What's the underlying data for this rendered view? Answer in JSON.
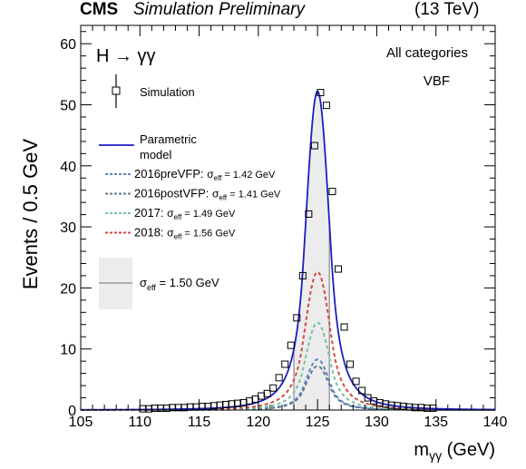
{
  "header": {
    "experiment": "CMS",
    "status": "Simulation Preliminary",
    "energy": "(13 TeV)"
  },
  "chart_data": {
    "type": "line",
    "title": "",
    "xlabel_main": "m",
    "xlabel_sub": "γγ",
    "xlabel_unit": "(GeV)",
    "ylabel": "Events / 0.5 GeV",
    "xlim": [
      105,
      140
    ],
    "ylim": [
      0,
      63
    ],
    "x_ticks": [
      105,
      110,
      115,
      120,
      125,
      130,
      135,
      140
    ],
    "y_ticks": [
      0,
      10,
      20,
      30,
      40,
      50,
      60
    ],
    "process_label": "H → γγ",
    "category_label": "All categories",
    "tag_label": "VBF",
    "sigma_eff_band": [
      123.0,
      126.0
    ],
    "legend": {
      "simulation": "Simulation",
      "parametric": "Parametric",
      "model": "model",
      "sigma_prefix": "σ",
      "sigma_sub": "eff",
      "band_value": " = 1.50 GeV"
    },
    "series": [
      {
        "name": "Simulation",
        "kind": "points",
        "x": [
          110.25,
          110.75,
          111.25,
          111.75,
          112.25,
          112.75,
          113.25,
          113.75,
          114.25,
          114.75,
          115.25,
          115.75,
          116.25,
          116.75,
          117.25,
          117.75,
          118.25,
          118.75,
          119.25,
          119.75,
          120.25,
          120.75,
          121.25,
          121.75,
          122.25,
          122.75,
          123.25,
          123.75,
          124.25,
          124.75,
          125.25,
          125.75,
          126.25,
          126.75,
          127.25,
          127.75,
          128.25,
          128.75,
          129.25,
          129.75,
          130.25,
          130.75,
          131.25,
          131.75,
          132.25,
          132.75,
          133.25,
          133.75,
          134.25,
          134.75
        ],
        "y": [
          0.2,
          0.2,
          0.3,
          0.3,
          0.3,
          0.4,
          0.4,
          0.4,
          0.5,
          0.5,
          0.6,
          0.6,
          0.7,
          0.8,
          0.9,
          1.0,
          1.1,
          1.2,
          1.5,
          1.8,
          2.3,
          2.7,
          3.6,
          5.3,
          7.5,
          10.6,
          15.1,
          22.0,
          32.1,
          43.3,
          52.0,
          49.9,
          35.8,
          23.1,
          13.6,
          7.5,
          4.7,
          3.2,
          2.0,
          1.5,
          1.2,
          1.0,
          0.8,
          0.7,
          0.6,
          0.5,
          0.4,
          0.4,
          0.3,
          0.3
        ]
      },
      {
        "name": "Parametric model",
        "kind": "model",
        "color": "#1d1dc2",
        "mean": 125.0,
        "width": 0.97,
        "peak": 52.2
      },
      {
        "name": "2016preVFP",
        "sigma_value": " = 1.42 GeV",
        "kind": "model-dashed",
        "color": "#5b86c6",
        "mean": 125.0,
        "width": 0.95,
        "peak": 8.3
      },
      {
        "name": "2016postVFP",
        "sigma_value": " = 1.41 GeV",
        "kind": "model-dashed",
        "color": "#5f7a8c",
        "mean": 125.0,
        "width": 0.95,
        "peak": 7.2
      },
      {
        "name": "2017",
        "sigma_value": " = 1.49 GeV",
        "kind": "model-dashed",
        "color": "#7bbfa8",
        "mean": 125.0,
        "width": 1.0,
        "peak": 14.3
      },
      {
        "name": "2018",
        "sigma_value": " = 1.56 GeV",
        "kind": "model-dashed",
        "color": "#d24a44",
        "mean": 125.0,
        "width": 1.04,
        "peak": 22.6
      }
    ],
    "grid": false,
    "legend_position": "left"
  }
}
